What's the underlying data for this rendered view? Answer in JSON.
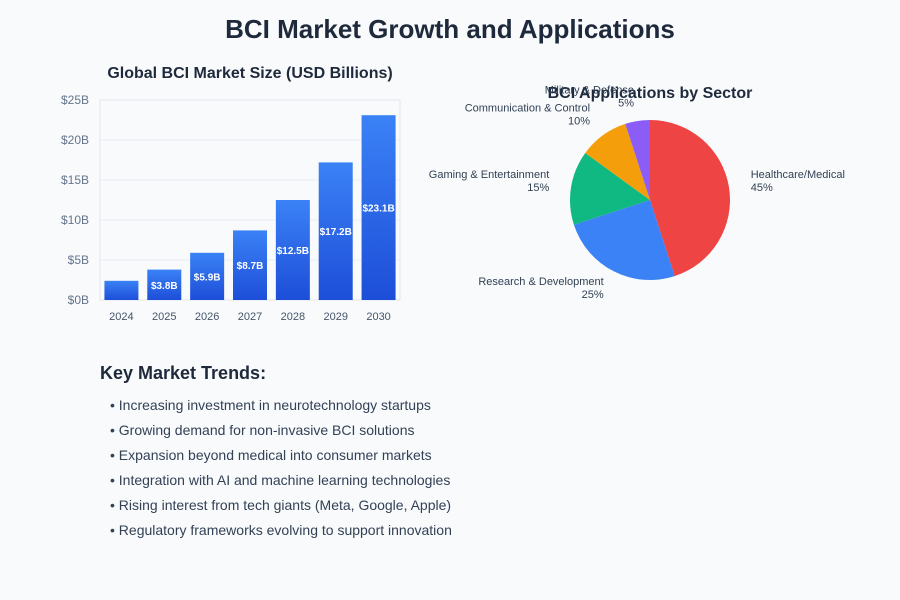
{
  "page": {
    "title": "BCI Market Growth and Applications"
  },
  "chart_data": [
    {
      "type": "bar",
      "title": "Global BCI Market Size (USD Billions)",
      "categories": [
        "2024",
        "2025",
        "2026",
        "2027",
        "2028",
        "2029",
        "2030"
      ],
      "values": [
        2.4,
        3.8,
        5.9,
        8.7,
        12.5,
        17.2,
        23.1
      ],
      "data_labels": [
        "",
        "$3.8B",
        "$5.9B",
        "$8.7B",
        "$12.5B",
        "$17.2B",
        "$23.1B"
      ],
      "y_ticks": [
        0,
        5,
        10,
        15,
        20,
        25
      ],
      "y_tick_labels": [
        "$0B",
        "$5B",
        "$10B",
        "$15B",
        "$20B",
        "$25B"
      ],
      "ylim": [
        0,
        25
      ],
      "grid": true,
      "colors": {
        "bar_top": "#3b82f6",
        "bar_bottom": "#1d4ed8"
      }
    },
    {
      "type": "pie",
      "title": "BCI Applications by Sector",
      "slices": [
        {
          "label": "Healthcare/Medical",
          "value": 45,
          "value_label": "45%",
          "color": "#ef4444"
        },
        {
          "label": "Research & Development",
          "value": 25,
          "value_label": "25%",
          "color": "#3b82f6"
        },
        {
          "label": "Gaming & Entertainment",
          "value": 15,
          "value_label": "15%",
          "color": "#10b981"
        },
        {
          "label": "Communication & Control",
          "value": 10,
          "value_label": "10%",
          "color": "#f59e0b"
        },
        {
          "label": "Military & Defense",
          "value": 5,
          "value_label": "5%",
          "color": "#8b5cf6"
        }
      ]
    }
  ],
  "trends": {
    "heading": "Key Market Trends:",
    "items": [
      "• Increasing investment in neurotechnology startups",
      "• Growing demand for non-invasive BCI solutions",
      "• Expansion beyond medical into consumer markets",
      "• Integration with AI and machine learning technologies",
      "• Rising interest from tech giants (Meta, Google, Apple)",
      "• Regulatory frameworks evolving to support innovation"
    ]
  }
}
